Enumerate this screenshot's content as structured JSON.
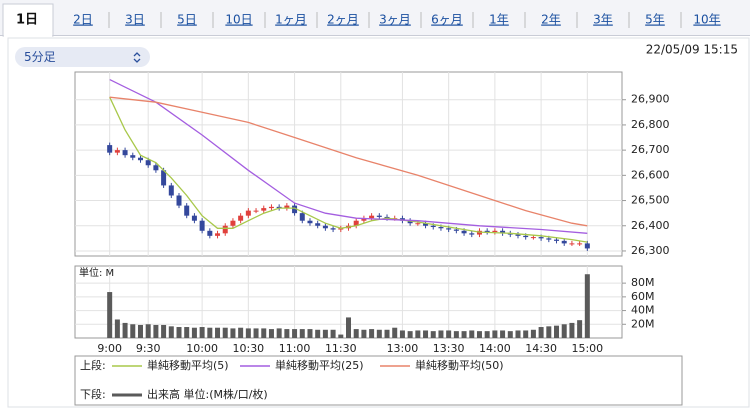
{
  "tabs": [
    "1日",
    "2日",
    "3日",
    "5日",
    "10日",
    "1ヶ月",
    "2ヶ月",
    "3ヶ月",
    "6ヶ月",
    "1年",
    "2年",
    "3年",
    "5年",
    "10年"
  ],
  "interval": "5分足",
  "timestamp": "22/05/09 15:15",
  "chart_data": [
    {
      "type": "candlestick",
      "legend_title": "上段:",
      "up_color": "#e0403c",
      "down_color": "#34489c",
      "grid": true,
      "xlim": [
        -4.5,
        66.5
      ],
      "ylim": [
        26280,
        27010
      ],
      "yticks": [
        {
          "value": 26300,
          "label": "26,300"
        },
        {
          "value": 26400,
          "label": "26,400"
        },
        {
          "value": 26500,
          "label": "26,500"
        },
        {
          "value": 26600,
          "label": "26,600"
        },
        {
          "value": 26700,
          "label": "26,700"
        },
        {
          "value": 26800,
          "label": "26,800"
        },
        {
          "value": 26900,
          "label": "26,900"
        }
      ],
      "x": [
        0,
        1,
        2,
        3,
        4,
        5,
        6,
        7,
        8,
        9,
        10,
        11,
        12,
        13,
        14,
        15,
        16,
        17,
        18,
        19,
        20,
        21,
        22,
        23,
        24,
        25,
        26,
        27,
        28,
        29,
        30,
        31,
        32,
        33,
        34,
        35,
        36,
        37,
        38,
        39,
        40,
        41,
        42,
        43,
        44,
        45,
        46,
        47,
        48,
        49,
        50,
        51,
        52,
        53,
        54,
        55,
        56,
        57,
        58,
        59,
        60,
        61,
        62
      ],
      "open": [
        26720,
        26690,
        26700,
        26680,
        26670,
        26660,
        26640,
        26620,
        26560,
        26520,
        26480,
        26440,
        26420,
        26380,
        26360,
        26370,
        26400,
        26420,
        26440,
        26460,
        26460,
        26470,
        26475,
        26470,
        26480,
        26450,
        26420,
        26410,
        26400,
        26390,
        26385,
        26390,
        26400,
        26420,
        26430,
        26440,
        26435,
        26430,
        26430,
        26420,
        26410,
        26410,
        26400,
        26395,
        26390,
        26385,
        26380,
        26370,
        26365,
        26380,
        26375,
        26380,
        26370,
        26365,
        26360,
        26355,
        26355,
        26350,
        26345,
        26340,
        26330,
        26330,
        26330
      ],
      "high": [
        26730,
        26710,
        26710,
        26690,
        26680,
        26670,
        26650,
        26630,
        26570,
        26530,
        26490,
        26450,
        26430,
        26390,
        26380,
        26410,
        26430,
        26450,
        26470,
        26470,
        26480,
        26485,
        26485,
        26490,
        26490,
        26460,
        26430,
        26420,
        26410,
        26400,
        26400,
        26410,
        26430,
        26440,
        26450,
        26450,
        26445,
        26440,
        26440,
        26430,
        26420,
        26420,
        26410,
        26405,
        26400,
        26395,
        26390,
        26380,
        26390,
        26390,
        26390,
        26390,
        26380,
        26375,
        26370,
        26365,
        26365,
        26360,
        26355,
        26350,
        26340,
        26340,
        26340
      ],
      "low": [
        26680,
        26680,
        26670,
        26660,
        26650,
        26630,
        26610,
        26550,
        26510,
        26470,
        26430,
        26410,
        26370,
        26350,
        26350,
        26360,
        26390,
        26410,
        26430,
        26450,
        26450,
        26460,
        26460,
        26460,
        26440,
        26410,
        26400,
        26390,
        26380,
        26375,
        26375,
        26380,
        26390,
        26410,
        26420,
        26425,
        26420,
        26420,
        26410,
        26400,
        26400,
        26390,
        26385,
        26380,
        26375,
        26370,
        26360,
        26355,
        26355,
        26365,
        26365,
        26360,
        26355,
        26350,
        26345,
        26345,
        26340,
        26335,
        26330,
        26320,
        26320,
        26320,
        26300
      ],
      "close": [
        26690,
        26700,
        26680,
        26670,
        26660,
        26640,
        26620,
        26560,
        26520,
        26480,
        26440,
        26420,
        26380,
        26360,
        26370,
        26400,
        26420,
        26440,
        26460,
        26460,
        26470,
        26475,
        26470,
        26480,
        26450,
        26420,
        26410,
        26400,
        26390,
        26385,
        26390,
        26400,
        26420,
        26430,
        26440,
        26435,
        26430,
        26430,
        26420,
        26410,
        26410,
        26400,
        26395,
        26390,
        26385,
        26380,
        26370,
        26365,
        26380,
        26375,
        26380,
        26370,
        26365,
        26360,
        26355,
        26355,
        26350,
        26345,
        26340,
        26330,
        26330,
        26330,
        26310
      ],
      "series": [
        {
          "name": "単純移動平均(5)",
          "color": "#a8c84a",
          "x": [
            0,
            2,
            4,
            6,
            8,
            10,
            12,
            14,
            16,
            18,
            20,
            22,
            24,
            26,
            28,
            30,
            32,
            34,
            36,
            40,
            44,
            48,
            52,
            56,
            60,
            62
          ],
          "values": [
            26910,
            26780,
            26680,
            26650,
            26590,
            26520,
            26440,
            26390,
            26390,
            26420,
            26450,
            26470,
            26470,
            26440,
            26410,
            26390,
            26400,
            26420,
            26430,
            26415,
            26395,
            26375,
            26370,
            26360,
            26345,
            26335
          ]
        },
        {
          "name": "単純移動平均(25)",
          "color": "#a45ee0",
          "x": [
            0,
            6,
            12,
            18,
            24,
            28,
            32,
            40,
            48,
            56,
            62
          ],
          "values": [
            26980,
            26890,
            26760,
            26620,
            26490,
            26450,
            26430,
            26420,
            26400,
            26385,
            26370
          ]
        },
        {
          "name": "単純移動平均(50)",
          "color": "#e8836a",
          "x": [
            0,
            6,
            12,
            18,
            24,
            32,
            40,
            48,
            54,
            60,
            62
          ],
          "values": [
            26910,
            26890,
            26850,
            26810,
            26750,
            26670,
            26600,
            26520,
            26460,
            26410,
            26400
          ]
        }
      ]
    },
    {
      "type": "bar",
      "legend_title": "下段:",
      "unit_label": "単位: M",
      "grid": true,
      "xlim": [
        -4.5,
        66.5
      ],
      "xticks": [
        {
          "value": 0,
          "label": "9:00"
        },
        {
          "value": 5,
          "label": "9:30"
        },
        {
          "value": 12,
          "label": "10:00"
        },
        {
          "value": 18,
          "label": "10:30"
        },
        {
          "value": 24,
          "label": "11:00"
        },
        {
          "value": 30,
          "label": "11:30"
        },
        {
          "value": 38,
          "label": "13:00"
        },
        {
          "value": 44,
          "label": "13:30"
        },
        {
          "value": 50,
          "label": "14:00"
        },
        {
          "value": 56,
          "label": "14:30"
        },
        {
          "value": 62,
          "label": "15:00"
        }
      ],
      "ylim": [
        0,
        105
      ],
      "yticks": [
        {
          "value": 20,
          "label": "20M"
        },
        {
          "value": 40,
          "label": "40M"
        },
        {
          "value": 60,
          "label": "60M"
        },
        {
          "value": 80,
          "label": "80M"
        }
      ],
      "x": [
        0,
        1,
        2,
        3,
        4,
        5,
        6,
        7,
        8,
        9,
        10,
        11,
        12,
        13,
        14,
        15,
        16,
        17,
        18,
        19,
        20,
        21,
        22,
        23,
        24,
        25,
        26,
        27,
        28,
        29,
        30,
        31,
        32,
        33,
        34,
        35,
        36,
        37,
        38,
        39,
        40,
        41,
        42,
        43,
        44,
        45,
        46,
        47,
        48,
        49,
        50,
        51,
        52,
        53,
        54,
        55,
        56,
        57,
        58,
        59,
        60,
        61,
        62
      ],
      "series": [
        {
          "name": "出来高 単位:(M株/口/枚)",
          "color": "#5a5a5a",
          "values": [
            67,
            27,
            22,
            20,
            19,
            20,
            19,
            19,
            17,
            16,
            16,
            15,
            16,
            15,
            15,
            15,
            14,
            15,
            14,
            14,
            14,
            13,
            14,
            13,
            13,
            13,
            13,
            12,
            12,
            12,
            5,
            30,
            13,
            12,
            13,
            12,
            12,
            15,
            11,
            10,
            11,
            11,
            10,
            11,
            11,
            10,
            10,
            11,
            10,
            10,
            11,
            11,
            10,
            11,
            11,
            12,
            16,
            17,
            18,
            20,
            22,
            26,
            93
          ]
        }
      ]
    }
  ]
}
